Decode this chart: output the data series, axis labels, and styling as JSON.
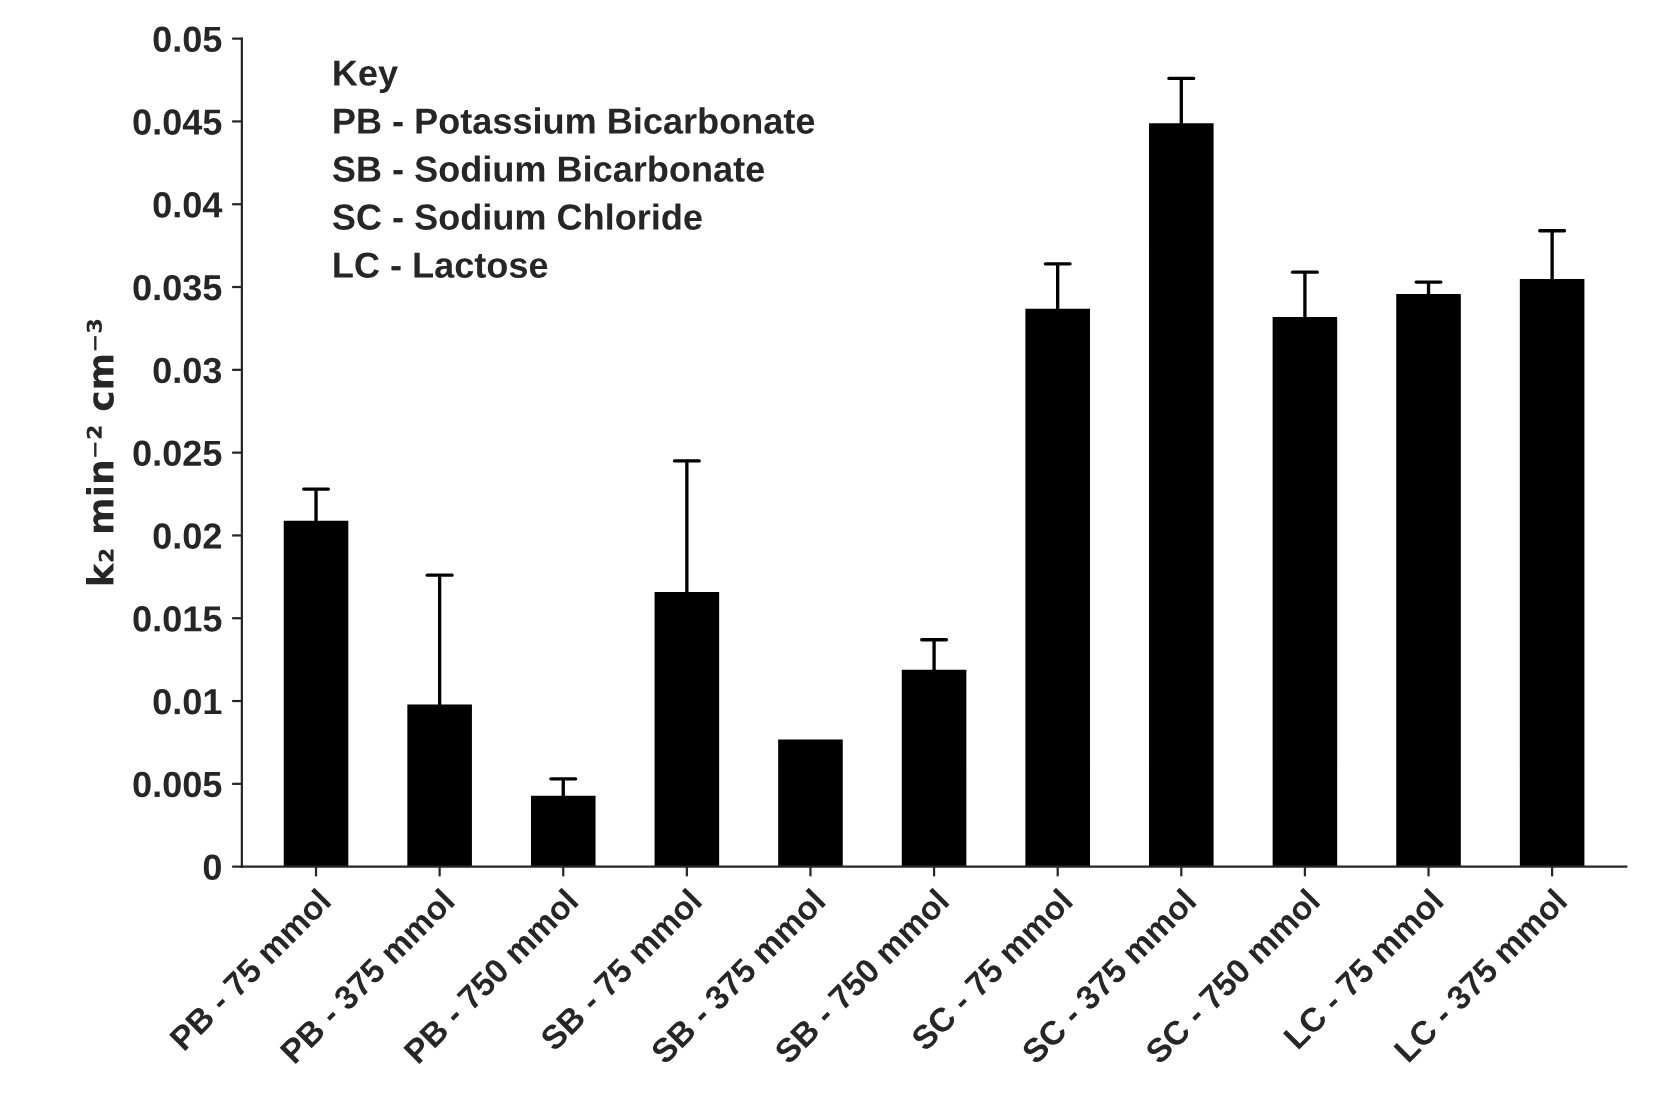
{
  "chart_data": {
    "type": "bar",
    "ylabel": "k₂ min⁻² cm⁻³",
    "categories": [
      "PB - 75 mmol",
      "PB - 375 mmol",
      "PB - 750 mmol",
      "SB - 75 mmol",
      "SB - 375 mmol",
      "SB - 750 mmol",
      "SC - 75 mmol",
      "SC - 375 mmol",
      "SC - 750 mmol",
      "LC - 75 mmol",
      "LC - 375 mmol"
    ],
    "values": [
      0.0208,
      0.0097,
      0.0042,
      0.0165,
      0.0076,
      0.0118,
      0.0336,
      0.0448,
      0.0331,
      0.0345,
      0.0354
    ],
    "errors": [
      [
        0.0208,
        0.0228
      ],
      [
        0.0097,
        0.0176
      ],
      [
        0.0042,
        0.0053
      ],
      [
        0.0165,
        0.0245
      ],
      null,
      [
        0.0118,
        0.0137
      ],
      [
        0.0336,
        0.0364
      ],
      [
        0.0448,
        0.0476
      ],
      [
        0.0331,
        0.0359
      ],
      [
        0.0345,
        0.0353
      ],
      [
        0.0354,
        0.0384
      ]
    ],
    "color": "#000000",
    "ylim": [
      0,
      0.05
    ],
    "yticks": [
      0,
      0.005,
      0.01,
      0.015,
      0.02,
      0.025,
      0.03,
      0.035,
      0.04,
      0.045,
      0.05
    ],
    "grid": false,
    "annotations": [
      "Key",
      "PB - Potassium Bicarbonate",
      "SB - Sodium Bicarbonate",
      "SC - Sodium Chloride",
      "LC - Lactose"
    ]
  }
}
